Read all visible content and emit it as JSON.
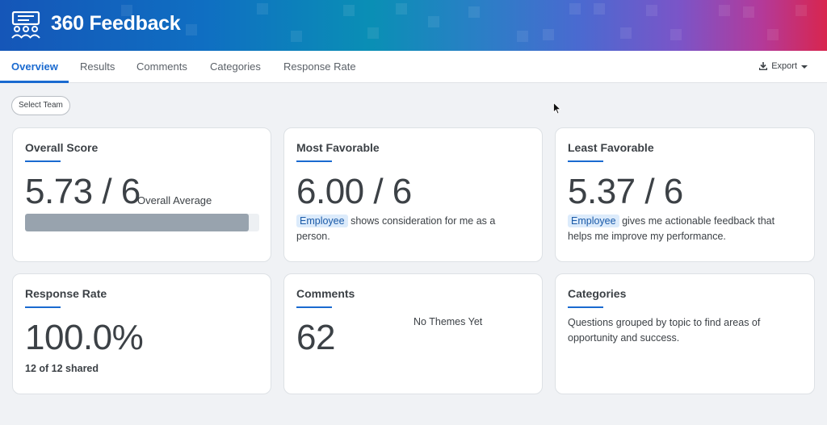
{
  "app": {
    "title": "360 Feedback",
    "logo_icon": "team-presentation-icon"
  },
  "tabs": [
    {
      "label": "Overview",
      "active": true
    },
    {
      "label": "Results",
      "active": false
    },
    {
      "label": "Comments",
      "active": false
    },
    {
      "label": "Categories",
      "active": false
    },
    {
      "label": "Response Rate",
      "active": false
    }
  ],
  "toolbar": {
    "export_label": "Export",
    "export_icon": "download-icon"
  },
  "filter": {
    "select_team_label": "Select Team"
  },
  "cards": {
    "overall_score": {
      "title": "Overall Score",
      "score": "5.73 / 6",
      "caption": "Overall Average",
      "progress_fraction": 0.955
    },
    "most_favorable": {
      "title": "Most Favorable",
      "score": "6.00 / 6",
      "tag": "Employee",
      "text": " shows consideration for me as a person."
    },
    "least_favorable": {
      "title": "Least Favorable",
      "score": "5.37 / 6",
      "tag": "Employee",
      "text": " gives me actionable feedback that helps me improve my performance."
    },
    "response_rate": {
      "title": "Response Rate",
      "value": "100.0%",
      "detail": "12 of 12 shared"
    },
    "comments": {
      "title": "Comments",
      "count": "62",
      "themes": "No Themes Yet"
    },
    "categories": {
      "title": "Categories",
      "description": "Questions grouped by topic to find areas of opportunity and success."
    }
  },
  "colors": {
    "accent": "#1a6ad0",
    "tag_bg": "#dcebfb",
    "progress": "#98a3ae"
  }
}
